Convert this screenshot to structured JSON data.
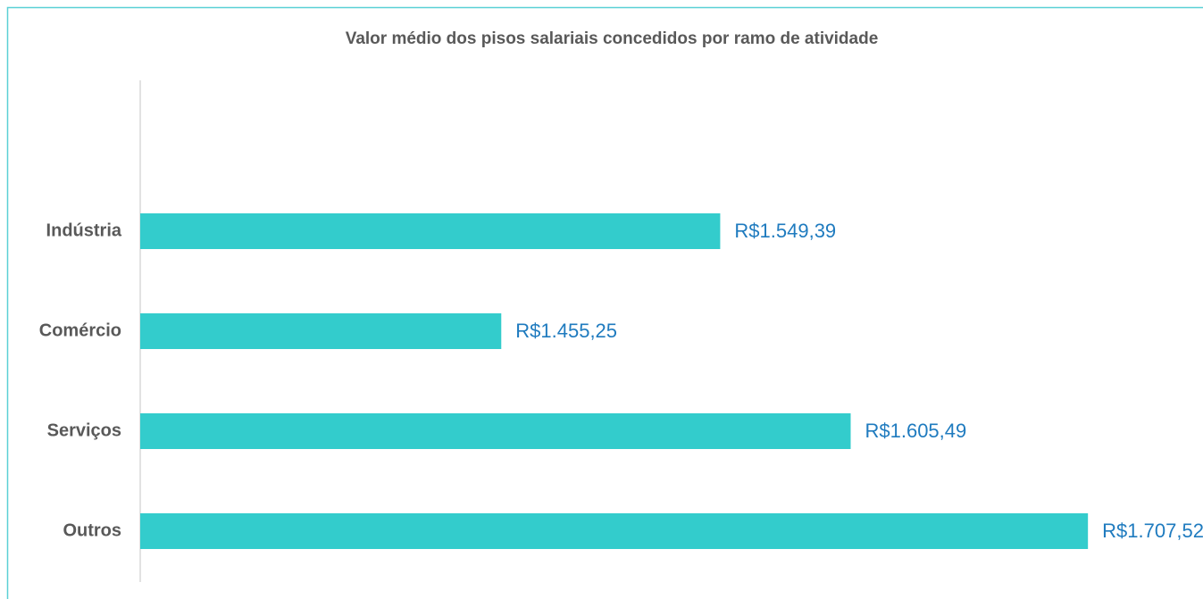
{
  "chart_data": {
    "type": "bar",
    "orientation": "horizontal",
    "title": "Valor médio dos pisos salariais concedidos por ramo de atividade",
    "categories": [
      "Indústria",
      "Comércio",
      "Serviços",
      "Outros"
    ],
    "values": [
      1549.39,
      1455.25,
      1605.49,
      1707.52
    ],
    "value_labels": [
      "R$1.549,39",
      "R$1.455,25",
      "R$1.605,49",
      "R$1.707,52"
    ],
    "color": "#33cccc",
    "xlim": [
      1300,
      1800
    ]
  }
}
